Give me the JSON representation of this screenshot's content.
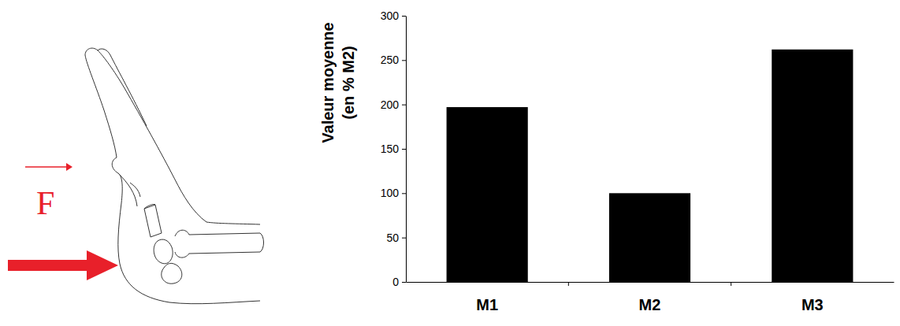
{
  "chart_data": {
    "type": "bar",
    "categories": [
      "M1",
      "M2",
      "M3"
    ],
    "values": [
      197,
      100,
      262
    ],
    "color": "#000000",
    "ylim": [
      0,
      300
    ],
    "yticks": [
      0,
      50,
      100,
      150,
      200,
      250,
      300
    ],
    "y_label": "Valeur moyenne (en % M2)",
    "annotation": "F",
    "grid": false
  }
}
